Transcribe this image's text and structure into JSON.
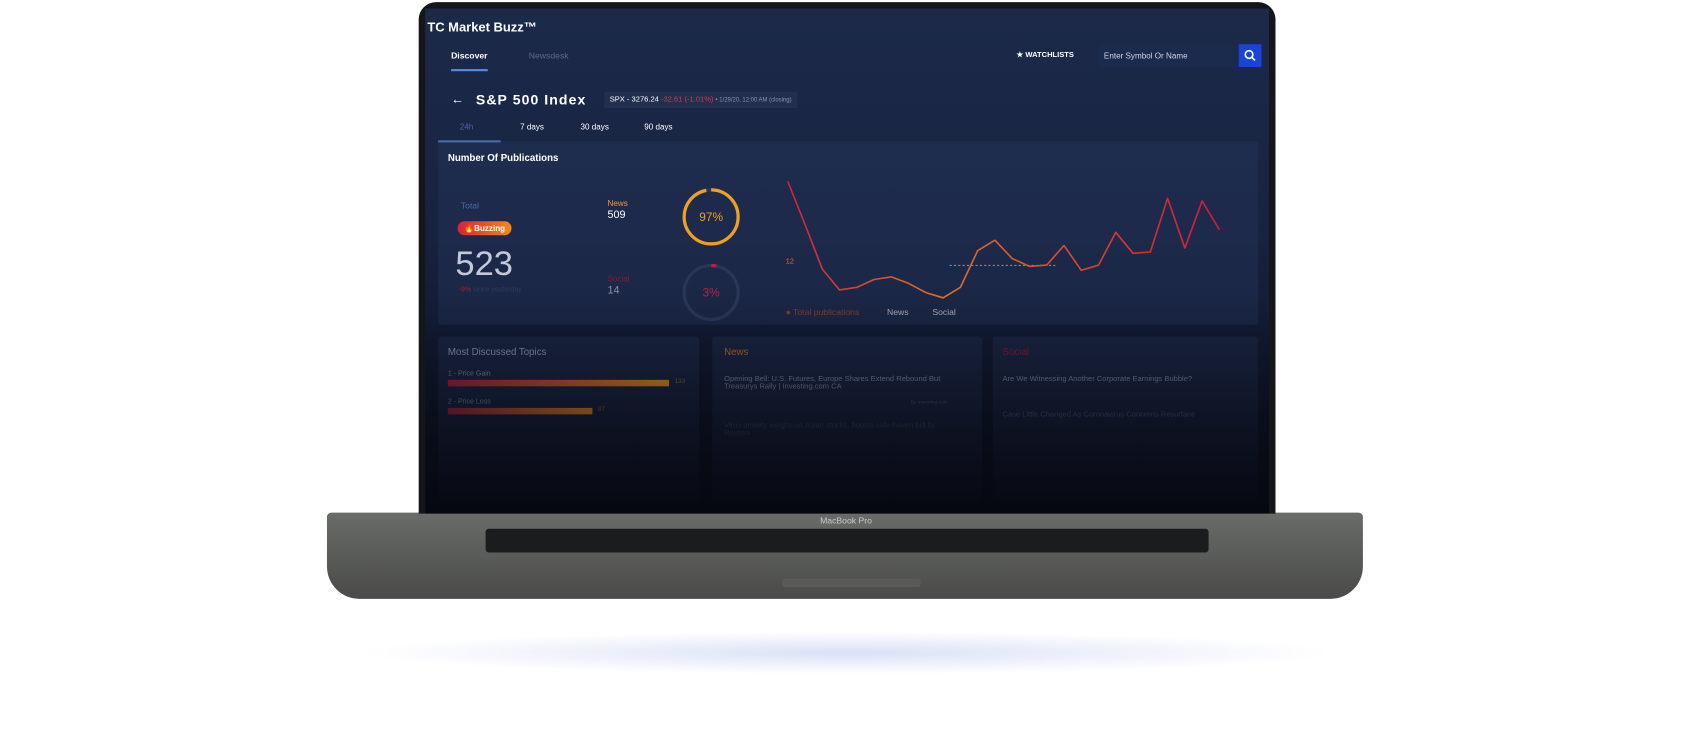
{
  "app": {
    "title": "TC Market Buzz™",
    "tabs": [
      "Discover",
      "Newsdesk"
    ],
    "watchlists": "WATCHLISTS",
    "search_placeholder": "Enter Symbol Or Name"
  },
  "index": {
    "name": "S&P 500 Index",
    "symbol": "SPX -",
    "price": "3276.24",
    "change": "-32.61 (-1.01%)",
    "time": "• 1/29/20, 12:00 AM (closing)"
  },
  "ranges": [
    "24h",
    "7 days",
    "30 days",
    "90 days"
  ],
  "publications": {
    "title": "Number Of Publications",
    "total_label": "Total",
    "badge": "Buzzing",
    "total": "523",
    "delta": "-9%",
    "delta_text": "since yesterday",
    "news": {
      "label": "News",
      "count": "509",
      "share": {
        "value": 97,
        "label": "97%"
      }
    },
    "social": {
      "label": "Social",
      "count": "14",
      "share": {
        "value": 3,
        "label": "3%"
      }
    },
    "line": {
      "values": [
        95,
        62,
        28,
        12,
        14,
        20,
        22,
        17,
        10,
        6,
        14,
        42,
        50,
        36,
        30,
        31,
        46,
        27,
        31,
        56,
        40,
        41,
        82,
        44,
        80,
        58
      ],
      "reference": "12"
    },
    "legend": [
      "Total publications",
      "News",
      "Social"
    ]
  },
  "topics": {
    "title": "Most Discussed Topics",
    "items": [
      {
        "label": "1 - Price Gain",
        "value": 133
      },
      {
        "label": "2 - Price Loss",
        "value": 87
      }
    ]
  },
  "news": {
    "title": "News",
    "items": [
      "Opening Bell: U.S. Futures, Europe Shares Extend Rebound But Treasurys Rally | Investing.com CA",
      "Virus anxiety weighs on Asian stocks, boosts safe-haven bid by Reuters"
    ],
    "source": "By Investing.com"
  },
  "social": {
    "title": "Social",
    "items": [
      "Are We Witnessing Another Corporate Earnings Bubble?",
      "Case Little Changed As Coronavirus Concerns Resurface"
    ]
  },
  "device": "MacBook Pro"
}
